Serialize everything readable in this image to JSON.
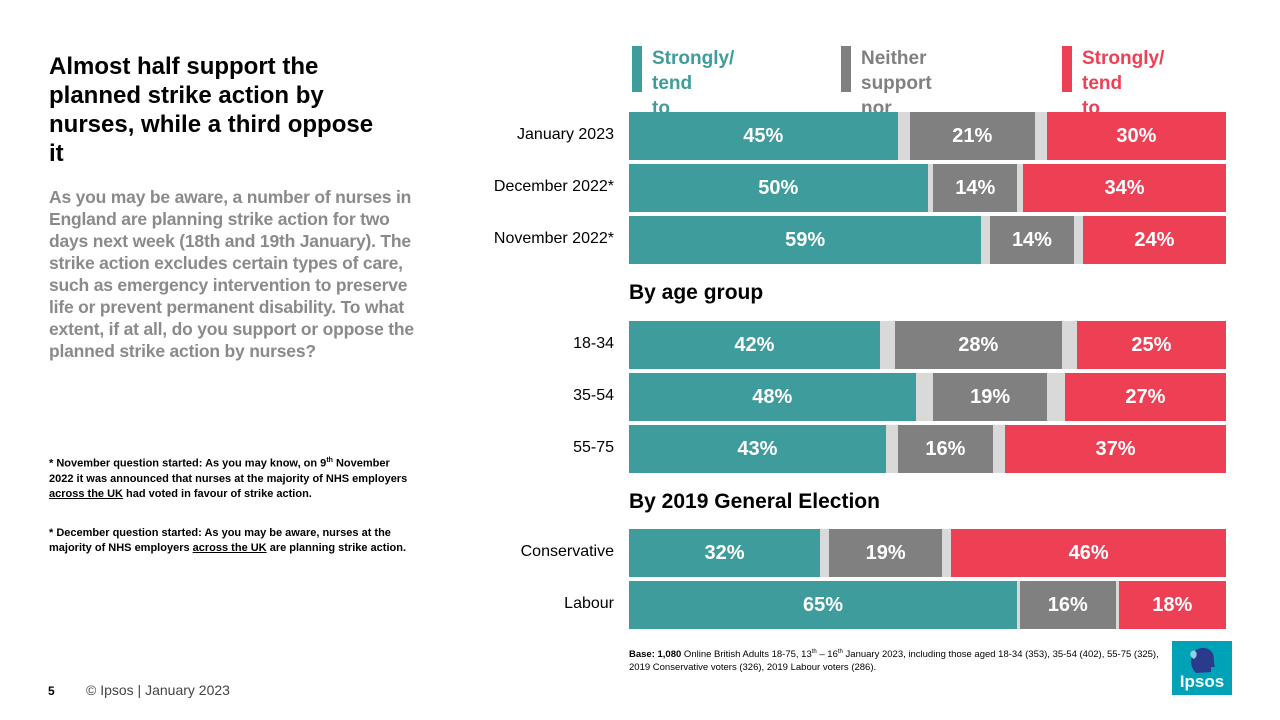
{
  "slide": {
    "title": "Almost half support the planned strike action by nurses, while a third oppose it",
    "question": "As you may be aware, a number of nurses in England are planning strike action for two days next week (18th and 19th January). The strike action excludes certain types of care, such as emergency intervention to preserve life or prevent permanent disability. To what extent, if at all, do you support or oppose the planned strike action by nurses?",
    "note1": {
      "prefix": "* November question started: As you may know, on 9",
      "sup": "th",
      "middle": " November 2022 it was announced that nurses at the majority of NHS employers ",
      "underline": "across the UK",
      "suffix": " had voted in favour of strike action."
    },
    "note2": {
      "prefix": "* December question started: As you may be aware, nurses at the majority of NHS employers ",
      "underline": "across the UK",
      "suffix": " are planning strike action."
    },
    "page_number": "5",
    "copyright": "© Ipsos | January 2023",
    "logo_text": "Ipsos",
    "base_note": {
      "bold": "Base: 1,080",
      "text1": " Online British Adults 18-75, 13",
      "sup1": "th",
      "text2": " – 16",
      "sup2": "th",
      "text3": " January 2023, including those aged 18-34 (353), 35-54 (402), 55-75 (325), 2019 Conservative voters (326), 2019 Labour voters (286)."
    }
  },
  "colors": {
    "support": "#3f9c9c",
    "neither": "#808080",
    "oppose": "#ee4054",
    "gap": "#d9d9d9"
  },
  "chart_data": {
    "type": "bar",
    "orientation": "horizontal",
    "stacked": true,
    "xlim": [
      0,
      100
    ],
    "series": [
      {
        "name": "Strongly/ tend to support",
        "label": "Strongly/ tend\nto support",
        "values": [
          45,
          50,
          59,
          42,
          48,
          43,
          32,
          65
        ]
      },
      {
        "name": "Neither support nor oppose",
        "label": "Neither support\nnor oppose",
        "values": [
          21,
          14,
          14,
          28,
          19,
          16,
          19,
          16
        ]
      },
      {
        "name": "Strongly/ tend to oppose",
        "label": "Strongly/ tend\nto oppose",
        "values": [
          30,
          34,
          24,
          25,
          27,
          37,
          46,
          18
        ]
      }
    ],
    "groups": [
      {
        "heading": "",
        "categories": [
          "January 2023",
          "December 2022*",
          "November 2022*"
        ]
      },
      {
        "heading": "By age group",
        "categories": [
          "18-34",
          "35-54",
          "55-75"
        ]
      },
      {
        "heading": "By 2019 General Election",
        "categories": [
          "Conservative",
          "Labour"
        ]
      }
    ]
  }
}
